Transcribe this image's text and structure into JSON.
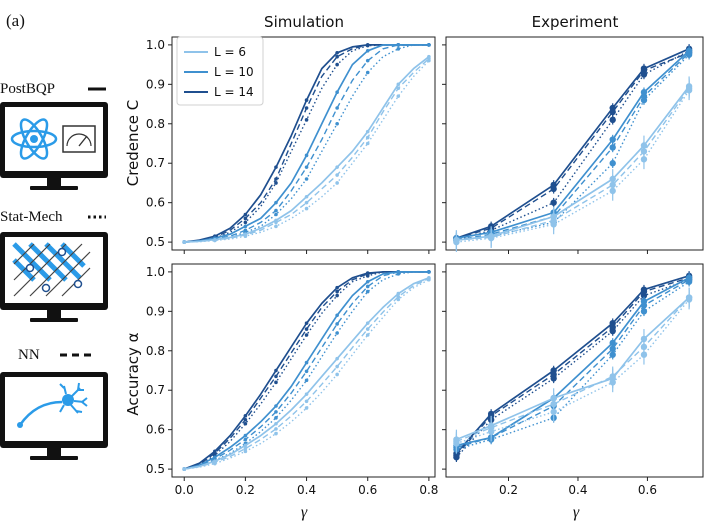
{
  "panel_label": "(a)",
  "column_titles": [
    "Simulation",
    "Experiment"
  ],
  "ylabels": [
    "Credence C",
    "Accuracy α"
  ],
  "xlabel": "γ",
  "methods": [
    {
      "name": "PostBQP",
      "style": "solid",
      "icon": "atom-and-meter-icon"
    },
    {
      "name": "Stat-Mech",
      "style": "dotted",
      "icon": "lattice-grid-icon"
    },
    {
      "name": "NN",
      "style": "dashed",
      "icon": "neuron-icon"
    }
  ],
  "colors": {
    "L6": "#8fc3ea",
    "L10": "#3f90cf",
    "L14": "#1f4f8f",
    "icon_blue": "#2b9be8",
    "frame": "#111111"
  },
  "legend": [
    {
      "label": "L = 6",
      "color": "#8fc3ea"
    },
    {
      "label": "L = 10",
      "color": "#3f90cf"
    },
    {
      "label": "L = 14",
      "color": "#1f4f8f"
    }
  ],
  "chart_data": [
    {
      "id": "sim-credence",
      "type": "line",
      "title": "Simulation",
      "ylabel": "Credence C",
      "xlabel": "",
      "xlim": [
        -0.04,
        0.82
      ],
      "ylim": [
        0.48,
        1.02
      ],
      "xticks": [
        0.0,
        0.2,
        0.4,
        0.6,
        0.8
      ],
      "yticks": [
        0.5,
        0.6,
        0.7,
        0.8,
        0.9,
        1.0
      ],
      "show_xticklabels": false,
      "show_yticklabels": true,
      "x": [
        0.0,
        0.05,
        0.1,
        0.15,
        0.2,
        0.25,
        0.3,
        0.35,
        0.4,
        0.45,
        0.5,
        0.55,
        0.6,
        0.65,
        0.7,
        0.75,
        0.8
      ],
      "series": [
        {
          "L": 14,
          "method": "PostBQP",
          "values": [
            0.5,
            0.505,
            0.515,
            0.535,
            0.57,
            0.62,
            0.69,
            0.77,
            0.86,
            0.94,
            0.98,
            0.995,
            1.0,
            1.0,
            1.0,
            1.0,
            1.0
          ]
        },
        {
          "L": 14,
          "method": "Stat-Mech",
          "values": [
            0.5,
            0.503,
            0.51,
            0.525,
            0.55,
            0.59,
            0.65,
            0.73,
            0.81,
            0.89,
            0.95,
            0.985,
            0.998,
            1.0,
            1.0,
            1.0,
            1.0
          ]
        },
        {
          "L": 14,
          "method": "NN",
          "values": [
            0.5,
            0.504,
            0.512,
            0.53,
            0.56,
            0.6,
            0.66,
            0.75,
            0.84,
            0.92,
            0.97,
            0.99,
            1.0,
            1.0,
            1.0,
            1.0,
            1.0
          ]
        },
        {
          "L": 10,
          "method": "PostBQP",
          "values": [
            0.5,
            0.503,
            0.51,
            0.52,
            0.54,
            0.56,
            0.6,
            0.65,
            0.72,
            0.8,
            0.88,
            0.95,
            0.985,
            1.0,
            1.0,
            1.0,
            1.0
          ]
        },
        {
          "L": 10,
          "method": "Stat-Mech",
          "values": [
            0.5,
            0.502,
            0.506,
            0.512,
            0.525,
            0.54,
            0.57,
            0.61,
            0.66,
            0.73,
            0.8,
            0.87,
            0.93,
            0.97,
            0.99,
            1.0,
            1.0
          ]
        },
        {
          "L": 10,
          "method": "NN",
          "values": [
            0.5,
            0.503,
            0.508,
            0.515,
            0.53,
            0.55,
            0.58,
            0.63,
            0.69,
            0.76,
            0.84,
            0.91,
            0.96,
            0.99,
            1.0,
            1.0,
            1.0
          ]
        },
        {
          "L": 6,
          "method": "PostBQP",
          "values": [
            0.5,
            0.502,
            0.506,
            0.512,
            0.52,
            0.535,
            0.555,
            0.58,
            0.615,
            0.65,
            0.69,
            0.73,
            0.78,
            0.84,
            0.9,
            0.94,
            0.97
          ]
        },
        {
          "L": 6,
          "method": "Stat-Mech",
          "values": [
            0.5,
            0.501,
            0.504,
            0.508,
            0.515,
            0.525,
            0.54,
            0.56,
            0.585,
            0.615,
            0.65,
            0.7,
            0.75,
            0.81,
            0.87,
            0.92,
            0.96
          ]
        },
        {
          "L": 6,
          "method": "NN",
          "values": [
            0.5,
            0.502,
            0.505,
            0.51,
            0.518,
            0.53,
            0.55,
            0.57,
            0.6,
            0.635,
            0.67,
            0.715,
            0.765,
            0.83,
            0.89,
            0.93,
            0.965
          ]
        }
      ]
    },
    {
      "id": "exp-credence",
      "type": "line",
      "title": "Experiment",
      "ylabel": "",
      "xlabel": "",
      "xlim": [
        0.02,
        0.76
      ],
      "ylim": [
        0.48,
        1.02
      ],
      "xticks": [
        0.2,
        0.4,
        0.6
      ],
      "yticks": [
        0.5,
        0.6,
        0.7,
        0.8,
        0.9,
        1.0
      ],
      "show_xticklabels": false,
      "show_yticklabels": false,
      "x": [
        0.05,
        0.15,
        0.33,
        0.5,
        0.59,
        0.72
      ],
      "series": [
        {
          "L": 14,
          "method": "PostBQP",
          "values": [
            0.51,
            0.54,
            0.645,
            0.84,
            0.94,
            0.99
          ]
        },
        {
          "L": 14,
          "method": "Stat-Mech",
          "values": [
            0.505,
            0.53,
            0.6,
            0.81,
            0.925,
            0.985
          ]
        },
        {
          "L": 14,
          "method": "NN",
          "values": [
            0.51,
            0.535,
            0.635,
            0.83,
            0.935,
            0.98
          ]
        },
        {
          "L": 10,
          "method": "PostBQP",
          "values": [
            0.51,
            0.525,
            0.575,
            0.76,
            0.88,
            0.985
          ]
        },
        {
          "L": 10,
          "method": "Stat-Mech",
          "values": [
            0.505,
            0.515,
            0.55,
            0.7,
            0.86,
            0.975
          ]
        },
        {
          "L": 10,
          "method": "NN",
          "values": [
            0.505,
            0.52,
            0.565,
            0.74,
            0.87,
            0.98
          ]
        },
        {
          "L": 6,
          "method": "PostBQP",
          "values": [
            0.505,
            0.515,
            0.565,
            0.66,
            0.745,
            0.895
          ]
        },
        {
          "L": 6,
          "method": "Stat-Mech",
          "values": [
            0.5,
            0.51,
            0.545,
            0.63,
            0.71,
            0.885
          ]
        },
        {
          "L": 6,
          "method": "NN",
          "values": [
            0.505,
            0.512,
            0.555,
            0.645,
            0.73,
            0.89
          ]
        }
      ]
    },
    {
      "id": "sim-accuracy",
      "type": "line",
      "title": "",
      "ylabel": "Accuracy α",
      "xlabel": "γ",
      "xlim": [
        -0.04,
        0.82
      ],
      "ylim": [
        0.48,
        1.02
      ],
      "xticks": [
        0.0,
        0.2,
        0.4,
        0.6,
        0.8
      ],
      "yticks": [
        0.5,
        0.6,
        0.7,
        0.8,
        0.9,
        1.0
      ],
      "show_xticklabels": true,
      "show_yticklabels": true,
      "x": [
        0.0,
        0.05,
        0.1,
        0.15,
        0.2,
        0.25,
        0.3,
        0.35,
        0.4,
        0.45,
        0.5,
        0.55,
        0.6,
        0.65,
        0.7,
        0.75,
        0.8
      ],
      "series": [
        {
          "L": 14,
          "method": "PostBQP",
          "values": [
            0.5,
            0.515,
            0.545,
            0.585,
            0.635,
            0.69,
            0.75,
            0.81,
            0.87,
            0.92,
            0.96,
            0.985,
            0.997,
            1.0,
            1.0,
            1.0,
            1.0
          ]
        },
        {
          "L": 14,
          "method": "Stat-Mech",
          "values": [
            0.5,
            0.51,
            0.535,
            0.57,
            0.615,
            0.665,
            0.72,
            0.78,
            0.84,
            0.895,
            0.94,
            0.975,
            0.99,
            1.0,
            1.0,
            1.0,
            1.0
          ]
        },
        {
          "L": 14,
          "method": "NN",
          "values": [
            0.5,
            0.512,
            0.54,
            0.578,
            0.625,
            0.68,
            0.735,
            0.795,
            0.855,
            0.91,
            0.95,
            0.98,
            0.995,
            1.0,
            1.0,
            1.0,
            1.0
          ]
        },
        {
          "L": 10,
          "method": "PostBQP",
          "values": [
            0.5,
            0.51,
            0.53,
            0.555,
            0.585,
            0.62,
            0.66,
            0.71,
            0.77,
            0.83,
            0.89,
            0.94,
            0.975,
            0.995,
            1.0,
            1.0,
            1.0
          ]
        },
        {
          "L": 10,
          "method": "Stat-Mech",
          "values": [
            0.5,
            0.507,
            0.522,
            0.54,
            0.565,
            0.595,
            0.63,
            0.675,
            0.725,
            0.785,
            0.845,
            0.9,
            0.95,
            0.98,
            0.995,
            1.0,
            1.0
          ]
        },
        {
          "L": 10,
          "method": "NN",
          "values": [
            0.5,
            0.508,
            0.526,
            0.548,
            0.575,
            0.607,
            0.645,
            0.693,
            0.748,
            0.808,
            0.868,
            0.92,
            0.963,
            0.99,
            1.0,
            1.0,
            1.0
          ]
        },
        {
          "L": 6,
          "method": "PostBQP",
          "values": [
            0.5,
            0.507,
            0.52,
            0.537,
            0.56,
            0.585,
            0.615,
            0.65,
            0.69,
            0.735,
            0.78,
            0.825,
            0.87,
            0.91,
            0.945,
            0.97,
            0.985
          ]
        },
        {
          "L": 6,
          "method": "Stat-Mech",
          "values": [
            0.5,
            0.505,
            0.514,
            0.528,
            0.545,
            0.565,
            0.59,
            0.62,
            0.655,
            0.695,
            0.74,
            0.79,
            0.84,
            0.885,
            0.93,
            0.96,
            0.98
          ]
        },
        {
          "L": 6,
          "method": "NN",
          "values": [
            0.5,
            0.506,
            0.517,
            0.532,
            0.552,
            0.575,
            0.602,
            0.635,
            0.672,
            0.715,
            0.76,
            0.808,
            0.855,
            0.898,
            0.937,
            0.965,
            0.983
          ]
        }
      ]
    },
    {
      "id": "exp-accuracy",
      "type": "line",
      "title": "",
      "ylabel": "",
      "xlabel": "γ",
      "xlim": [
        0.02,
        0.76
      ],
      "ylim": [
        0.48,
        1.02
      ],
      "xticks": [
        0.2,
        0.4,
        0.6
      ],
      "yticks": [
        0.5,
        0.6,
        0.7,
        0.8,
        0.9,
        1.0
      ],
      "show_xticklabels": true,
      "show_yticklabels": false,
      "x": [
        0.05,
        0.15,
        0.33,
        0.5,
        0.59,
        0.72
      ],
      "series": [
        {
          "L": 14,
          "method": "PostBQP",
          "values": [
            0.54,
            0.64,
            0.75,
            0.87,
            0.955,
            0.99
          ]
        },
        {
          "L": 14,
          "method": "Stat-Mech",
          "values": [
            0.53,
            0.625,
            0.73,
            0.85,
            0.94,
            0.98
          ]
        },
        {
          "L": 14,
          "method": "NN",
          "values": [
            0.535,
            0.635,
            0.74,
            0.86,
            0.95,
            0.985
          ]
        },
        {
          "L": 10,
          "method": "PostBQP",
          "values": [
            0.56,
            0.58,
            0.68,
            0.82,
            0.925,
            0.985
          ]
        },
        {
          "L": 10,
          "method": "Stat-Mech",
          "values": [
            0.55,
            0.575,
            0.63,
            0.79,
            0.9,
            0.975
          ]
        },
        {
          "L": 10,
          "method": "NN",
          "values": [
            0.555,
            0.58,
            0.66,
            0.805,
            0.915,
            0.98
          ]
        },
        {
          "L": 6,
          "method": "PostBQP",
          "values": [
            0.575,
            0.61,
            0.68,
            0.73,
            0.83,
            0.935
          ]
        },
        {
          "L": 6,
          "method": "Stat-Mech",
          "values": [
            0.565,
            0.595,
            0.645,
            0.72,
            0.79,
            0.93
          ]
        },
        {
          "L": 6,
          "method": "NN",
          "values": [
            0.57,
            0.605,
            0.665,
            0.735,
            0.81,
            0.935
          ]
        }
      ]
    }
  ]
}
